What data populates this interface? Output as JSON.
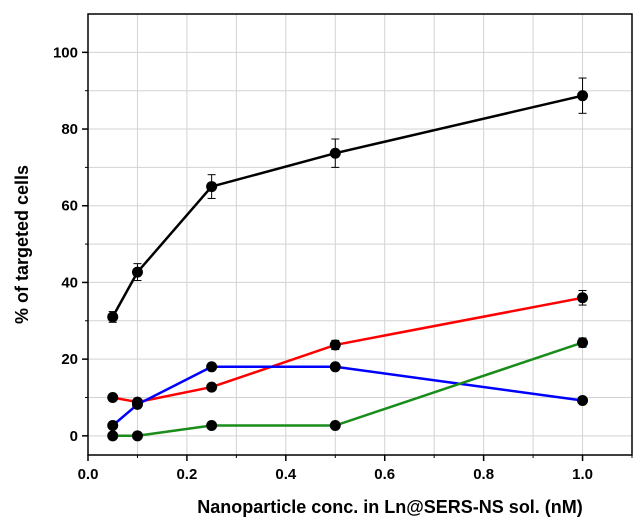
{
  "chart_data": {
    "type": "line",
    "title": "",
    "xlabel": "Nanoparticle conc. in Ln@SERS-NS sol. (nM)",
    "ylabel": "% of targeted cells",
    "xlim": [
      0.0,
      1.1
    ],
    "ylim": [
      -5,
      110
    ],
    "x_ticks": [
      0.0,
      0.2,
      0.4,
      0.6,
      0.8,
      1.0
    ],
    "x_tick_labels": [
      "0.0",
      "0.2",
      "0.4",
      "0.6",
      "0.8",
      "1.0"
    ],
    "y_ticks": [
      0,
      20,
      40,
      60,
      80,
      100
    ],
    "y_tick_labels": [
      "0",
      "20",
      "40",
      "60",
      "80",
      "100"
    ],
    "grid": true,
    "legend": "none",
    "series": [
      {
        "color": "#000000",
        "x": [
          0.05,
          0.1,
          0.25,
          0.5,
          1.0
        ],
        "y": [
          31,
          42.7,
          65,
          73.7,
          88.7
        ],
        "error": [
          1.4,
          2.2,
          3.1,
          3.7,
          4.6
        ]
      },
      {
        "color": "#ff0000",
        "x": [
          0.05,
          0.1,
          0.25,
          0.5,
          1.0
        ],
        "y": [
          10,
          8.8,
          12.7,
          23.7,
          36
        ],
        "error": [
          0,
          0.5,
          0,
          1.2,
          1.9
        ]
      },
      {
        "color": "#0000ff",
        "x": [
          0.05,
          0.1,
          0.25,
          0.5,
          1.0
        ],
        "y": [
          2.7,
          8.2,
          18,
          18,
          9.2
        ],
        "error": [
          0,
          0,
          0,
          0,
          0
        ]
      },
      {
        "color": "#1a8c1a",
        "x": [
          0.05,
          0.1,
          0.25,
          0.5,
          1.0
        ],
        "y": [
          0,
          0,
          2.7,
          2.7,
          24.3
        ],
        "error": [
          0,
          0,
          0,
          0,
          1.2
        ]
      }
    ]
  }
}
